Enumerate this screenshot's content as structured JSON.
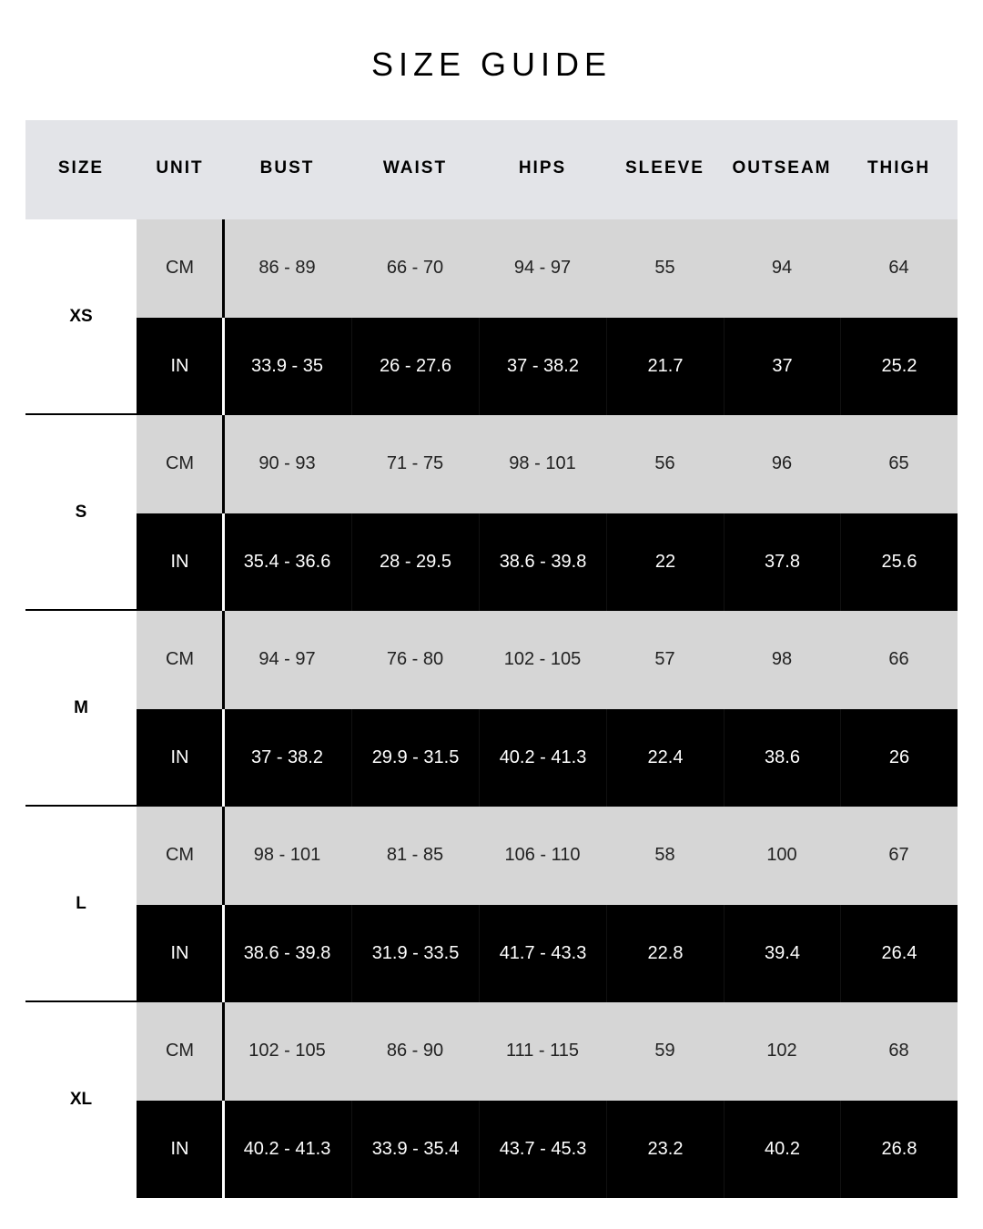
{
  "title": "SIZE GUIDE",
  "columns": [
    "SIZE",
    "UNIT",
    "BUST",
    "WAIST",
    "HIPS",
    "SLEEVE",
    "OUTSEAM",
    "THIGH"
  ],
  "colors": {
    "header_bg": "#e3e4e8",
    "cm_row_bg": "#d6d6d6",
    "in_row_bg": "#000000"
  },
  "sizes": [
    {
      "size": "XS",
      "rows": [
        {
          "unit": "CM",
          "values": [
            "86 - 89",
            "66 - 70",
            "94 - 97",
            "55",
            "94",
            "64"
          ]
        },
        {
          "unit": "IN",
          "values": [
            "33.9 - 35",
            "26 - 27.6",
            "37 - 38.2",
            "21.7",
            "37",
            "25.2"
          ]
        }
      ]
    },
    {
      "size": "S",
      "rows": [
        {
          "unit": "CM",
          "values": [
            "90 - 93",
            "71 - 75",
            "98 - 101",
            "56",
            "96",
            "65"
          ]
        },
        {
          "unit": "IN",
          "values": [
            "35.4 - 36.6",
            "28 - 29.5",
            "38.6 - 39.8",
            "22",
            "37.8",
            "25.6"
          ]
        }
      ]
    },
    {
      "size": "M",
      "rows": [
        {
          "unit": "CM",
          "values": [
            "94 - 97",
            "76 - 80",
            "102 - 105",
            "57",
            "98",
            "66"
          ]
        },
        {
          "unit": "IN",
          "values": [
            "37 - 38.2",
            "29.9 - 31.5",
            "40.2 - 41.3",
            "22.4",
            "38.6",
            "26"
          ]
        }
      ]
    },
    {
      "size": "L",
      "rows": [
        {
          "unit": "CM",
          "values": [
            "98 - 101",
            "81 - 85",
            "106 - 110",
            "58",
            "100",
            "67"
          ]
        },
        {
          "unit": "IN",
          "values": [
            "38.6 - 39.8",
            "31.9 - 33.5",
            "41.7 - 43.3",
            "22.8",
            "39.4",
            "26.4"
          ]
        }
      ]
    },
    {
      "size": "XL",
      "rows": [
        {
          "unit": "CM",
          "values": [
            "102 - 105",
            "86 - 90",
            "111 - 115",
            "59",
            "102",
            "68"
          ]
        },
        {
          "unit": "IN",
          "values": [
            "40.2 - 41.3",
            "33.9 - 35.4",
            "43.7 - 45.3",
            "23.2",
            "40.2",
            "26.8"
          ]
        }
      ]
    }
  ]
}
